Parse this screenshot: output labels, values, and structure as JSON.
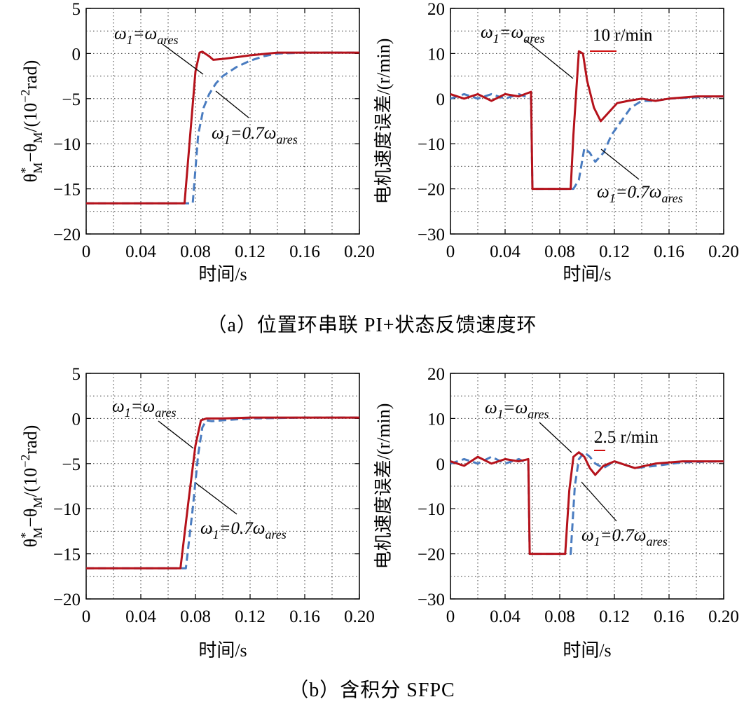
{
  "chart_data": [
    {
      "id": "a-left",
      "type": "line",
      "ylabel": "θ*M−θM/(10−2rad)",
      "xlabel": "时间/s",
      "xlim": [
        0,
        0.2
      ],
      "ylim": [
        -20,
        5
      ],
      "xticks": [
        "0",
        "0.04",
        "0.08",
        "0.12",
        "0.16",
        "0.20"
      ],
      "yticks": [
        "5",
        "0",
        "−5",
        "−10",
        "−15",
        "−20"
      ],
      "grid": true,
      "series": [
        {
          "color": "#b5121b",
          "style": "solid",
          "x": [
            0,
            0.072,
            0.08,
            0.083,
            0.085,
            0.09,
            0.093,
            0.1,
            0.11,
            0.12,
            0.14,
            0.16,
            0.2
          ],
          "y": [
            -16.6,
            -16.6,
            -2,
            0.1,
            0.2,
            -0.3,
            -0.7,
            -0.6,
            -0.4,
            -0.2,
            0.1,
            0.1,
            0.1
          ]
        },
        {
          "color": "#4a7cc0",
          "style": "dashed",
          "x": [
            0,
            0.078,
            0.082,
            0.086,
            0.09,
            0.095,
            0.1,
            0.11,
            0.12,
            0.13,
            0.14,
            0.16,
            0.2
          ],
          "y": [
            -16.6,
            -16.6,
            -9,
            -6,
            -4.5,
            -3.3,
            -2.5,
            -1.5,
            -0.8,
            -0.3,
            0,
            0.1,
            0.1
          ]
        }
      ],
      "annotations": [
        {
          "base": "ω",
          "sub": "1",
          "mid": "=ω",
          "sub2": "ares"
        },
        {
          "base": "ω",
          "sub": "1",
          "mid": "=0.7ω",
          "sub2": "ares"
        }
      ]
    },
    {
      "id": "a-right",
      "type": "line",
      "ylabel": "电机速度误差/(r/min)",
      "xlabel": "时间/s",
      "xlim": [
        0,
        0.2
      ],
      "ylim": [
        -30,
        20
      ],
      "xticks": [
        "0",
        "0.04",
        "0.08",
        "0.12",
        "0.16",
        "0.20"
      ],
      "yticks": [
        "20",
        "10",
        "0",
        "−10",
        "−20",
        "−30"
      ],
      "grid": true,
      "series": [
        {
          "color": "#b5121b",
          "style": "solid",
          "x": [
            0,
            0.01,
            0.02,
            0.03,
            0.04,
            0.05,
            0.059,
            0.06,
            0.088,
            0.09,
            0.094,
            0.097,
            0.1,
            0.105,
            0.11,
            0.116,
            0.122,
            0.13,
            0.14,
            0.15,
            0.16,
            0.18,
            0.2
          ],
          "y": [
            1,
            0,
            1,
            -0.5,
            1,
            0.5,
            1.5,
            -20,
            -20,
            -8,
            10.5,
            10,
            4,
            -2,
            -5,
            -3,
            -1,
            -0.5,
            0,
            -0.5,
            0,
            0.5,
            0.5
          ]
        },
        {
          "color": "#4a7cc0",
          "style": "dashed",
          "x": [
            0,
            0.01,
            0.02,
            0.03,
            0.04,
            0.05,
            0.059,
            0.06,
            0.09,
            0.094,
            0.098,
            0.102,
            0.106,
            0.112,
            0.118,
            0.125,
            0.132,
            0.14,
            0.15,
            0.16,
            0.18,
            0.2
          ],
          "y": [
            0,
            1,
            0,
            1,
            0,
            1,
            0,
            -20,
            -20,
            -18,
            -11,
            -12,
            -14,
            -12,
            -8,
            -5,
            -2,
            -0.5,
            -0.5,
            0,
            0.3,
            0.5
          ]
        }
      ],
      "annotations": [
        {
          "base": "ω",
          "sub": "1",
          "mid": "=ω",
          "sub2": "ares"
        },
        {
          "base": "ω",
          "sub": "1",
          "mid": "=0.7ω",
          "sub2": "ares"
        },
        {
          "text": "10 r/min"
        }
      ]
    },
    {
      "id": "b-left",
      "type": "line",
      "ylabel": "θ*M−θM/(10−2rad)",
      "xlabel": "时间/s",
      "xlim": [
        0,
        0.2
      ],
      "ylim": [
        -20,
        5
      ],
      "xticks": [
        "0",
        "0.04",
        "0.08",
        "0.12",
        "0.16",
        "0.20"
      ],
      "yticks": [
        "5",
        "0",
        "−5",
        "−10",
        "−15",
        "−20"
      ],
      "grid": true,
      "series": [
        {
          "color": "#b5121b",
          "style": "solid",
          "x": [
            0,
            0.069,
            0.075,
            0.08,
            0.084,
            0.088,
            0.1,
            0.12,
            0.16,
            0.2
          ],
          "y": [
            -16.6,
            -16.6,
            -9,
            -3,
            -0.2,
            0,
            0,
            0.1,
            0.1,
            0.1
          ]
        },
        {
          "color": "#4a7cc0",
          "style": "dashed",
          "x": [
            0,
            0.073,
            0.078,
            0.082,
            0.085,
            0.088,
            0.092,
            0.1,
            0.12,
            0.16,
            0.2
          ],
          "y": [
            -16.6,
            -16.6,
            -10,
            -4,
            -1,
            -0.2,
            -0.3,
            -0.2,
            0,
            0.1,
            0.1
          ]
        }
      ],
      "annotations": [
        {
          "base": "ω",
          "sub": "1",
          "mid": "=ω",
          "sub2": "ares"
        },
        {
          "base": "ω",
          "sub": "1",
          "mid": "=0.7ω",
          "sub2": "ares"
        }
      ]
    },
    {
      "id": "b-right",
      "type": "line",
      "ylabel": "电机速度误差/(r/min)",
      "xlabel": "时间/s",
      "xlim": [
        0,
        0.2
      ],
      "ylim": [
        -30,
        20
      ],
      "xticks": [
        "0",
        "0.04",
        "0.08",
        "0.12",
        "0.16",
        "0.20"
      ],
      "yticks": [
        "20",
        "10",
        "0",
        "−10",
        "−20",
        "−30"
      ],
      "grid": true,
      "series": [
        {
          "color": "#b5121b",
          "style": "solid",
          "x": [
            0,
            0.01,
            0.02,
            0.03,
            0.04,
            0.05,
            0.057,
            0.058,
            0.084,
            0.087,
            0.09,
            0.094,
            0.098,
            0.102,
            0.106,
            0.112,
            0.12,
            0.135,
            0.15,
            0.17,
            0.2
          ],
          "y": [
            0.5,
            -0.5,
            1.5,
            0,
            1,
            0.5,
            1,
            -20,
            -20,
            -6,
            1.5,
            2.5,
            1.5,
            -1,
            -2.5,
            -0.5,
            0.5,
            -1,
            0,
            0.5,
            0.5
          ]
        },
        {
          "color": "#4a7cc0",
          "style": "dashed",
          "x": [
            0,
            0.01,
            0.02,
            0.03,
            0.04,
            0.05,
            0.057,
            0.058,
            0.088,
            0.091,
            0.094,
            0.098,
            0.102,
            0.106,
            0.112,
            0.12,
            0.135,
            0.15,
            0.17,
            0.2
          ],
          "y": [
            0,
            1,
            0,
            1.5,
            0,
            1,
            0,
            -20,
            -20,
            -5,
            1,
            2.5,
            1.5,
            0,
            -1,
            0.5,
            -1,
            -0.5,
            0.3,
            0.5
          ]
        }
      ],
      "annotations": [
        {
          "base": "ω",
          "sub": "1",
          "mid": "=ω",
          "sub2": "ares"
        },
        {
          "base": "ω",
          "sub": "1",
          "mid": "=0.7ω",
          "sub2": "ares"
        },
        {
          "text": "2.5 r/min"
        }
      ]
    }
  ],
  "captions": {
    "a": "（a）位置环串联 PI+状态反馈速度环",
    "b": "（b）含积分 SFPC"
  }
}
